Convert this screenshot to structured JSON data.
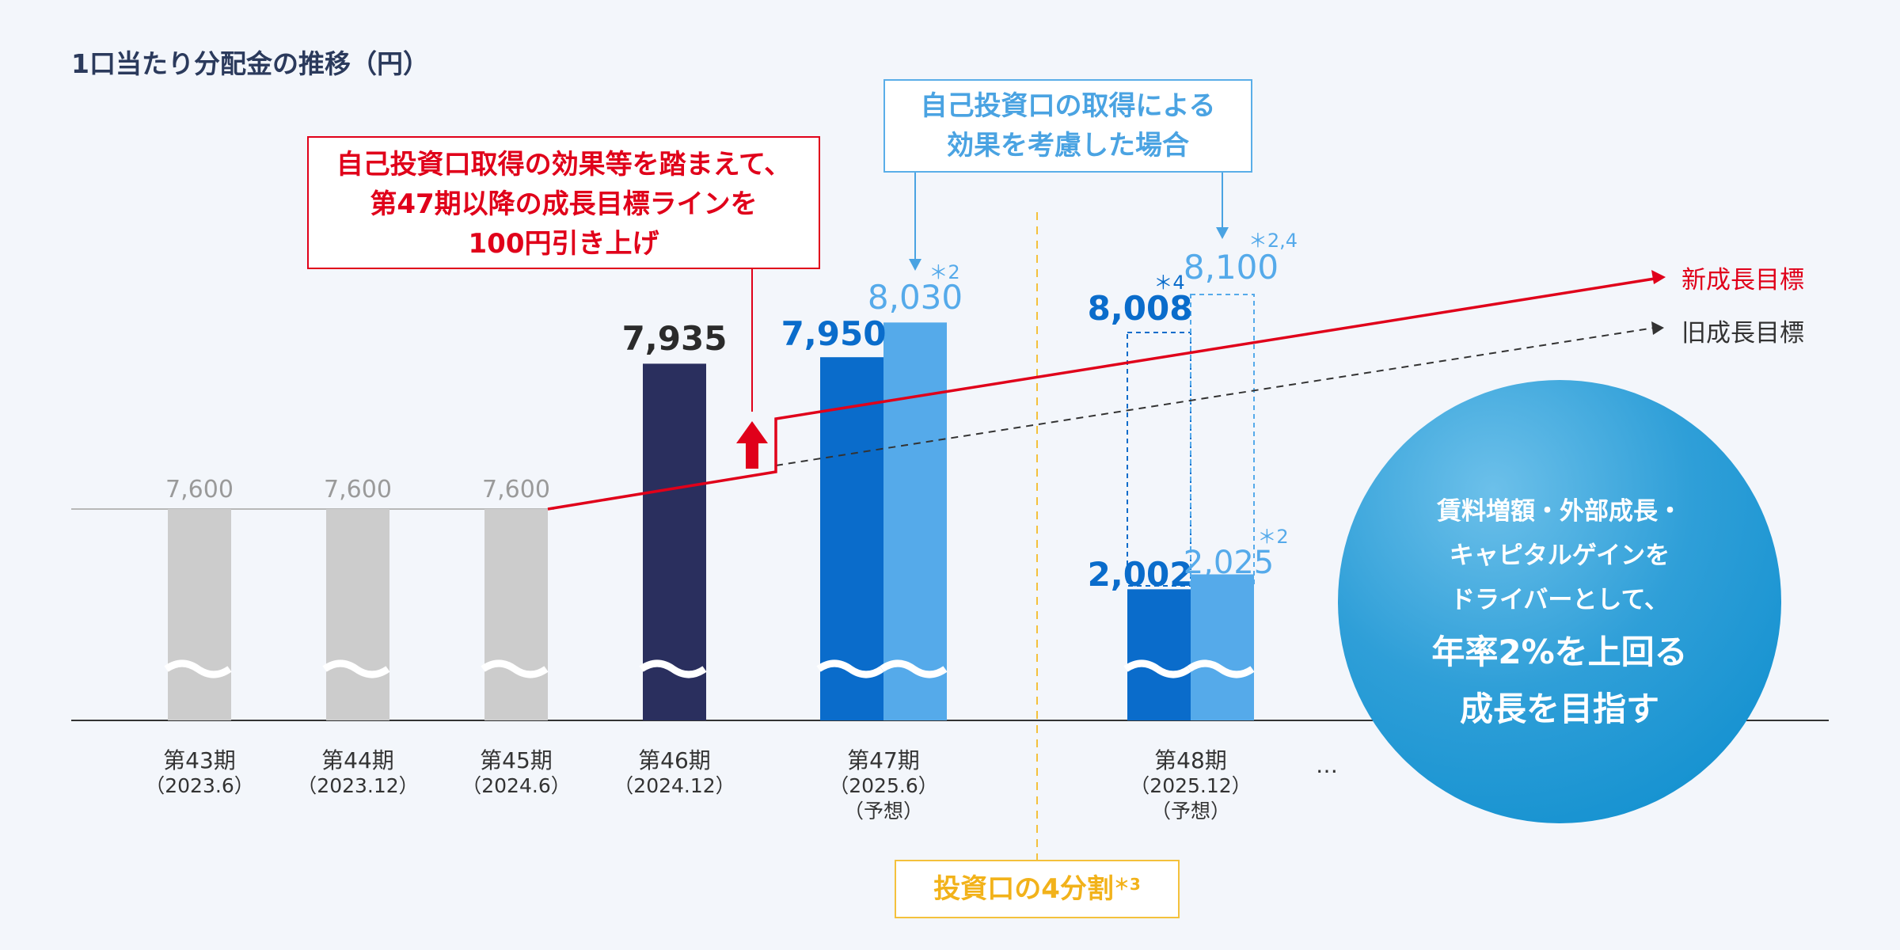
{
  "title": "1口当たり分配金の推移（円）",
  "chart_data": {
    "type": "bar",
    "title": "1口当たり分配金の推移（円）",
    "ylabel": "円",
    "axis_break": true,
    "categories": [
      {
        "period": "第43期",
        "date": "（2023.6）",
        "note": ""
      },
      {
        "period": "第44期",
        "date": "（2023.12）",
        "note": ""
      },
      {
        "period": "第45期",
        "date": "（2024.6）",
        "note": ""
      },
      {
        "period": "第46期",
        "date": "（2024.12）",
        "note": ""
      },
      {
        "period": "第47期",
        "date": "（2025.6）",
        "note": "（予想）"
      },
      {
        "period": "第48期",
        "date": "（2025.12）",
        "note": "（予想）"
      }
    ],
    "bars": [
      {
        "category": 0,
        "value": 7600,
        "label": "7,600",
        "color": "#cccccc"
      },
      {
        "category": 1,
        "value": 7600,
        "label": "7,600",
        "color": "#cccccc"
      },
      {
        "category": 2,
        "value": 7600,
        "label": "7,600",
        "color": "#cccccc"
      },
      {
        "category": 3,
        "value": 7935,
        "label": "7,935",
        "color": "#2a2f5e"
      },
      {
        "category": 4,
        "value": 7950,
        "label": "7,950",
        "color": "#0a6ccb"
      },
      {
        "category": 4,
        "value": 8030,
        "label": "8,030",
        "note": "＊2",
        "color": "#55aaea"
      },
      {
        "category": 5,
        "value": 2002,
        "label": "2,002",
        "color": "#0a6ccb"
      },
      {
        "category": 5,
        "value": 2025,
        "label": "2,025",
        "note": "＊2",
        "color": "#55aaea"
      }
    ],
    "pre_split_equivalents": [
      {
        "category": 5,
        "value": 8008,
        "label": "8,008",
        "note": "＊4"
      },
      {
        "category": 5,
        "value": 8100,
        "label": "8,100",
        "note": "＊2,4"
      }
    ],
    "series": [
      {
        "name": "新成長目標",
        "style": "solid",
        "color": "#e0001a"
      },
      {
        "name": "旧成長目標",
        "style": "dashed",
        "color": "#333333"
      }
    ],
    "ellipsis": "…",
    "annotations": {
      "red_callout": [
        "自己投資口取得の効果等を踏まえて、",
        "第47期以降の成長目標ラインを",
        "100円引き上げ"
      ],
      "blue_callout": [
        "自己投資口の取得による",
        "効果を考慮した場合"
      ],
      "split_label": "投資口の4分割",
      "split_note": "＊3",
      "circle": [
        "賃料増額・外部成長・",
        "キャピタルゲインを",
        "ドライバーとして、",
        "年率2%を上回る",
        "成長を目指す"
      ]
    }
  }
}
